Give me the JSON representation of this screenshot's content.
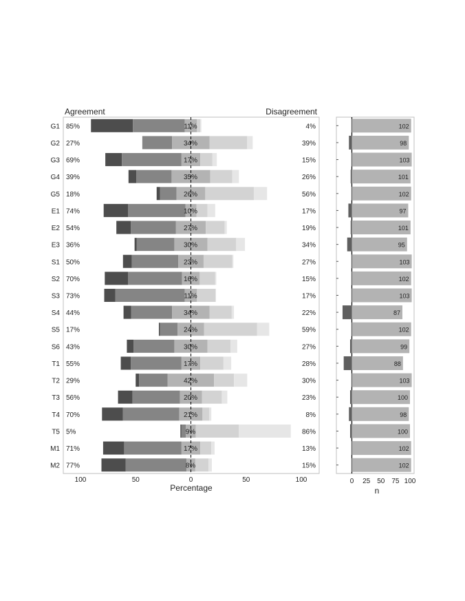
{
  "chart_data": [
    {
      "type": "bar",
      "subtype": "diverging-stacked-likert",
      "left_title": "Agreement",
      "right_title": "Disagreement",
      "xlabel": "Percentage",
      "x_ticks": [
        "100",
        "50",
        "0",
        "50",
        "100"
      ],
      "xlim": [
        -100,
        100
      ],
      "legend": "none",
      "colors": {
        "strongly_agree": "#4d4d4d",
        "agree": "#858585",
        "neutral": "#b3b3b3",
        "disagree": "#d3d3d3",
        "strongly_disagree": "#e6e6e6",
        "frame": "#bfbfbf",
        "zero_line": "#000000"
      },
      "items": [
        {
          "label": "G1",
          "agree": "85%",
          "neutral": "11%",
          "disagree": "4%",
          "values": [
            38,
            47,
            11,
            3,
            1
          ]
        },
        {
          "label": "G2",
          "agree": "27%",
          "neutral": "34%",
          "disagree": "39%",
          "values": [
            0,
            27,
            34,
            34,
            5
          ]
        },
        {
          "label": "G3",
          "agree": "69%",
          "neutral": "17%",
          "disagree": "15%",
          "values": [
            15,
            54,
            17,
            11,
            4
          ]
        },
        {
          "label": "G4",
          "agree": "39%",
          "neutral": "35%",
          "disagree": "26%",
          "values": [
            7,
            32,
            35,
            20,
            6
          ]
        },
        {
          "label": "G5",
          "agree": "18%",
          "neutral": "26%",
          "disagree": "56%",
          "values": [
            3,
            15,
            26,
            44,
            12
          ]
        },
        {
          "label": "E1",
          "agree": "74%",
          "neutral": "10%",
          "disagree": "17%",
          "values": [
            22,
            52,
            10,
            10,
            7
          ]
        },
        {
          "label": "E2",
          "agree": "54%",
          "neutral": "27%",
          "disagree": "19%",
          "values": [
            13,
            41,
            27,
            17,
            2
          ]
        },
        {
          "label": "E3",
          "agree": "36%",
          "neutral": "30%",
          "disagree": "34%",
          "values": [
            2,
            34,
            30,
            26,
            8
          ]
        },
        {
          "label": "S1",
          "agree": "50%",
          "neutral": "23%",
          "disagree": "27%",
          "values": [
            8,
            42,
            23,
            26,
            1
          ]
        },
        {
          "label": "S2",
          "agree": "70%",
          "neutral": "16%",
          "disagree": "15%",
          "values": [
            21,
            49,
            16,
            14,
            1
          ]
        },
        {
          "label": "S3",
          "agree": "73%",
          "neutral": "11%",
          "disagree": "17%",
          "values": [
            10,
            63,
            11,
            17,
            0
          ]
        },
        {
          "label": "S4",
          "agree": "44%",
          "neutral": "34%",
          "disagree": "22%",
          "values": [
            7,
            37,
            34,
            20,
            2
          ]
        },
        {
          "label": "S5",
          "agree": "17%",
          "neutral": "24%",
          "disagree": "59%",
          "values": [
            1,
            16,
            24,
            48,
            11
          ]
        },
        {
          "label": "S6",
          "agree": "43%",
          "neutral": "30%",
          "disagree": "27%",
          "values": [
            6,
            37,
            30,
            21,
            6
          ]
        },
        {
          "label": "T1",
          "agree": "55%",
          "neutral": "17%",
          "disagree": "28%",
          "values": [
            9,
            46,
            17,
            21,
            7
          ]
        },
        {
          "label": "T2",
          "agree": "29%",
          "neutral": "42%",
          "disagree": "30%",
          "values": [
            3,
            26,
            42,
            18,
            12
          ]
        },
        {
          "label": "T3",
          "agree": "56%",
          "neutral": "20%",
          "disagree": "23%",
          "values": [
            13,
            43,
            20,
            18,
            5
          ]
        },
        {
          "label": "T4",
          "agree": "70%",
          "neutral": "21%",
          "disagree": "8%",
          "values": [
            19,
            51,
            21,
            6,
            2
          ]
        },
        {
          "label": "T5",
          "agree": "5%",
          "neutral": "9%",
          "disagree": "86%",
          "values": [
            1,
            4,
            9,
            39,
            47
          ]
        },
        {
          "label": "M1",
          "agree": "71%",
          "neutral": "17%",
          "disagree": "13%",
          "values": [
            19,
            52,
            17,
            10,
            3
          ]
        },
        {
          "label": "M2",
          "agree": "77%",
          "neutral": "8%",
          "disagree": "15%",
          "values": [
            22,
            55,
            8,
            12,
            3
          ]
        }
      ]
    },
    {
      "type": "bar",
      "subtype": "horizontal-count",
      "xlabel": "n",
      "x_ticks": [
        "0",
        "25",
        "50",
        "75",
        "100"
      ],
      "xlim": [
        -16,
        104
      ],
      "legend": "none",
      "colors": {
        "respondents": "#b3b3b3",
        "missing": "#5f5f5f"
      },
      "categories": [
        "G1",
        "G2",
        "G3",
        "G4",
        "G5",
        "E1",
        "E2",
        "E3",
        "S1",
        "S2",
        "S3",
        "S4",
        "S5",
        "S6",
        "T1",
        "T2",
        "T3",
        "T4",
        "T5",
        "M1",
        "M2"
      ],
      "values": [
        102,
        98,
        103,
        101,
        102,
        97,
        101,
        95,
        103,
        102,
        103,
        87,
        102,
        99,
        88,
        103,
        100,
        98,
        100,
        102,
        102
      ],
      "missing": [
        0,
        5,
        0,
        2,
        0,
        6,
        2,
        8,
        0,
        0,
        0,
        16,
        0,
        3,
        14,
        0,
        3,
        5,
        3,
        0,
        0
      ]
    }
  ]
}
